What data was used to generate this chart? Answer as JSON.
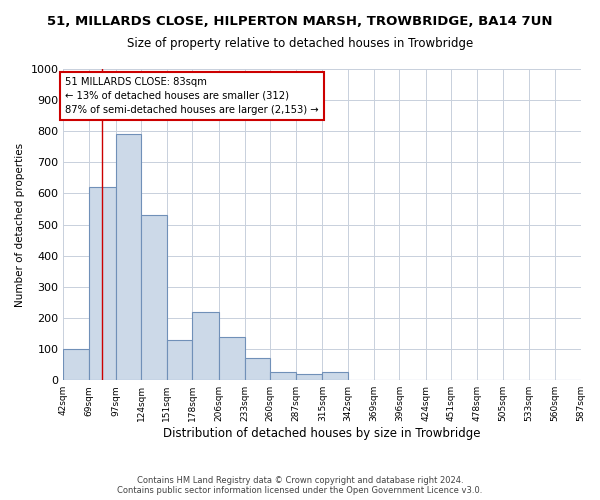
{
  "title": "51, MILLARDS CLOSE, HILPERTON MARSH, TROWBRIDGE, BA14 7UN",
  "subtitle": "Size of property relative to detached houses in Trowbridge",
  "xlabel": "Distribution of detached houses by size in Trowbridge",
  "ylabel": "Number of detached properties",
  "bar_color": "#ccd9e8",
  "bar_edge_color": "#7090b8",
  "grid_color": "#c8d0dc",
  "marker_value": 83,
  "marker_color": "#cc0000",
  "annotation_text": "51 MILLARDS CLOSE: 83sqm\n← 13% of detached houses are smaller (312)\n87% of semi-detached houses are larger (2,153) →",
  "annotation_box_color": "#cc0000",
  "footer1": "Contains HM Land Registry data © Crown copyright and database right 2024.",
  "footer2": "Contains public sector information licensed under the Open Government Licence v3.0.",
  "bin_edges": [
    42,
    69,
    97,
    124,
    151,
    178,
    206,
    233,
    260,
    287,
    315,
    342,
    369,
    396,
    424,
    451,
    478,
    505,
    533,
    560,
    587
  ],
  "bin_heights": [
    100,
    620,
    790,
    530,
    130,
    220,
    140,
    70,
    25,
    20,
    25,
    0,
    0,
    0,
    0,
    0,
    0,
    0,
    0,
    0
  ],
  "ylim": [
    0,
    1000
  ],
  "yticks": [
    0,
    100,
    200,
    300,
    400,
    500,
    600,
    700,
    800,
    900,
    1000
  ],
  "background_color": "#ffffff"
}
